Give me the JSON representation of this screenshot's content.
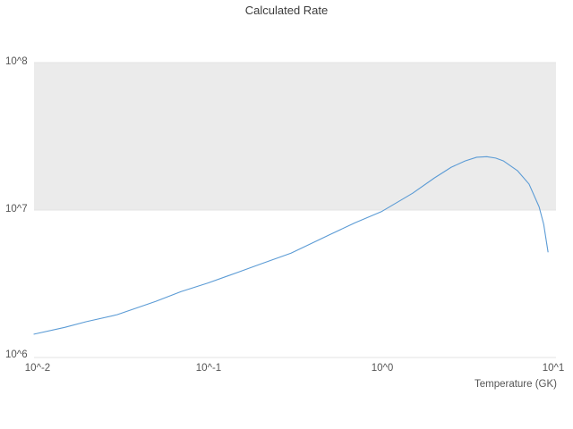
{
  "chart_data": {
    "type": "line",
    "title": "Calculated Rate",
    "xlabel": "Temperature (GK)",
    "ylabel": "",
    "xscale": "log",
    "yscale": "log",
    "xlog_range": [
      -2,
      1
    ],
    "ylog_range": [
      6,
      8
    ],
    "xticks": [
      "10^-2",
      "10^-1",
      "10^0",
      "10^1"
    ],
    "yticks": [
      "10^8",
      "10^7",
      "10^6"
    ],
    "band_y": [
      10000000,
      100000000
    ],
    "band_color": "#ebebeb",
    "grid_color": "#e3e3e3",
    "line_color": "#5b9bd5",
    "legend": [],
    "points": [
      [
        0.01,
        1440000
      ],
      [
        0.015,
        1600000
      ],
      [
        0.02,
        1750000
      ],
      [
        0.03,
        1950000
      ],
      [
        0.05,
        2400000
      ],
      [
        0.07,
        2800000
      ],
      [
        0.1,
        3200000
      ],
      [
        0.15,
        3800000
      ],
      [
        0.2,
        4300000
      ],
      [
        0.3,
        5100000
      ],
      [
        0.5,
        6800000
      ],
      [
        0.7,
        8200000
      ],
      [
        1.0,
        9800000
      ],
      [
        1.5,
        13000000
      ],
      [
        2.0,
        16500000
      ],
      [
        2.5,
        19500000
      ],
      [
        3.0,
        21500000
      ],
      [
        3.5,
        22800000
      ],
      [
        4.0,
        23000000
      ],
      [
        4.5,
        22500000
      ],
      [
        5.0,
        21500000
      ],
      [
        6.0,
        18500000
      ],
      [
        7.0,
        15000000
      ],
      [
        8.0,
        10500000
      ],
      [
        8.5,
        8000000
      ],
      [
        9.0,
        5200000
      ]
    ]
  }
}
